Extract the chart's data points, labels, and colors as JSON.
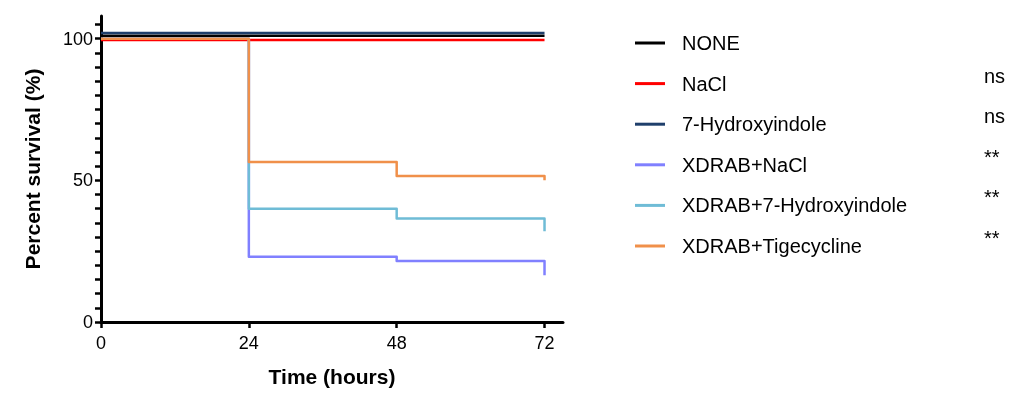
{
  "chart_data": {
    "type": "step",
    "xlabel": "Time (hours)",
    "ylabel": "Percent survival (%)",
    "xlim": [
      0,
      75
    ],
    "xticks": [
      0,
      24,
      48,
      72
    ],
    "ylim": [
      0,
      108
    ],
    "yticks": [
      0,
      {
        "value": 5,
        "label": null
      },
      {
        "value": 10,
        "label": null
      },
      {
        "value": 15,
        "label": null
      },
      {
        "value": 20,
        "label": null
      },
      {
        "value": 25,
        "label": null
      },
      {
        "value": 30,
        "label": null
      },
      {
        "value": 35,
        "label": null
      },
      {
        "value": 40,
        "label": null
      },
      {
        "value": 45,
        "label": null
      },
      50,
      {
        "value": 55,
        "label": null
      },
      {
        "value": 60,
        "label": null
      },
      {
        "value": 65,
        "label": null
      },
      {
        "value": 70,
        "label": null
      },
      {
        "value": 75,
        "label": null
      },
      {
        "value": 80,
        "label": null
      },
      {
        "value": 85,
        "label": null
      },
      {
        "value": 90,
        "label": null
      },
      {
        "value": 95,
        "label": null
      },
      100,
      {
        "value": 105,
        "label": null
      }
    ],
    "grid": false,
    "legend": "right",
    "marker": "none",
    "line_style": "solid",
    "series": [
      {
        "name": "NONE",
        "color": "#000000",
        "x": [
          0,
          72
        ],
        "values": [
          101,
          101
        ]
      },
      {
        "name": "NaCl",
        "color": "#ff0000",
        "x": [
          0,
          72
        ],
        "values": [
          99.5,
          99.5
        ]
      },
      {
        "name": "7-Hydroxyindole",
        "color": "#1f3f6b",
        "x": [
          0,
          72
        ],
        "values": [
          102,
          102
        ]
      },
      {
        "name": "XDRAB+NaCl",
        "color": "#8080ff",
        "x": [
          0,
          24,
          48,
          72,
          72
        ],
        "values": [
          100,
          23,
          21.5,
          21.5,
          16.5
        ]
      },
      {
        "name": "XDRAB+7-Hydroxyindole",
        "color": "#6fbcd6",
        "x": [
          0,
          24,
          48,
          72,
          72
        ],
        "values": [
          100,
          40,
          36.5,
          36.5,
          32
        ]
      },
      {
        "name": "XDRAB+Tigecycline",
        "color": "#f0904a",
        "x": [
          0,
          24,
          48,
          72,
          72
        ],
        "values": [
          100,
          56.5,
          51.5,
          51.5,
          50
        ]
      }
    ],
    "annotations": [
      "ns",
      "ns",
      "**",
      "**",
      "**"
    ]
  }
}
